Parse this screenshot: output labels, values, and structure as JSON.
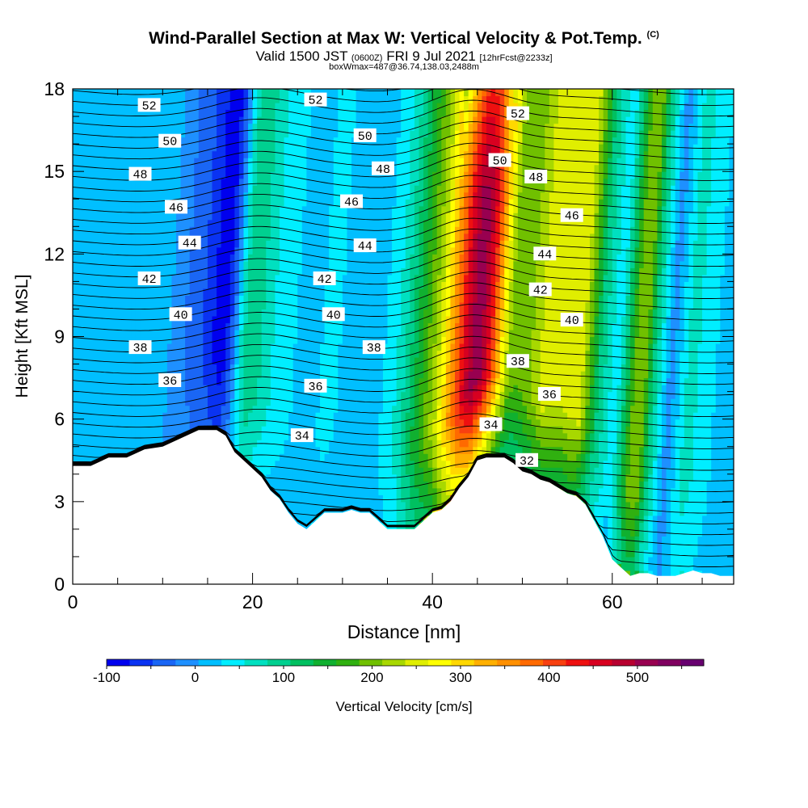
{
  "header": {
    "title": "Wind-Parallel Section at Max W: Vertical Velocity & Pot.Temp.",
    "title_mark": "(C)",
    "valid_time": "Valid 1500 JST",
    "utc_time": "(0600Z)",
    "date": "FRI 9 Jul 2021",
    "forecast": "[12hrFcst@2233z]",
    "note": "boxWmax=487@36.74,138.03,2488m"
  },
  "chart_data": {
    "type": "heatmap",
    "xlabel": "Distance [nm]",
    "ylabel": "Height [Kft MSL]",
    "xlim": [
      0,
      73.5
    ],
    "ylim": [
      0,
      18
    ],
    "x_ticks": [
      0,
      20,
      40,
      60
    ],
    "y_ticks": [
      0,
      3,
      6,
      9,
      12,
      15,
      18
    ],
    "colorbar": {
      "label": "Vertical Velocity [cm/s]",
      "min": -100,
      "max": 550,
      "step": 25,
      "ticks": [
        -100,
        0,
        100,
        200,
        300,
        400,
        500
      ],
      "colors": [
        "#0000ee",
        "#0a33f2",
        "#1a66f5",
        "#1e90ff",
        "#00bfff",
        "#00eeff",
        "#00e0c0",
        "#00d090",
        "#00c060",
        "#10b030",
        "#30b010",
        "#70c000",
        "#a8d800",
        "#e0ee00",
        "#ffff00",
        "#ffd800",
        "#ffb000",
        "#ff9000",
        "#ff6a00",
        "#f84010",
        "#ee1010",
        "#d80020",
        "#b80030",
        "#980050",
        "#800060",
        "#680070"
      ]
    },
    "w_profile": {
      "x": [
        0,
        4,
        8,
        10,
        12,
        14,
        15,
        16,
        17,
        18,
        19,
        20,
        22,
        24,
        26,
        28,
        30,
        32,
        34,
        36,
        38,
        40,
        41,
        42,
        43,
        44,
        45,
        46,
        47,
        48,
        49,
        50,
        52,
        54,
        56,
        58,
        60,
        62,
        63,
        64,
        66,
        68,
        70,
        72,
        73.5
      ],
      "w": [
        15,
        10,
        5,
        0,
        -30,
        -55,
        -80,
        -95,
        -40,
        60,
        100,
        80,
        40,
        25,
        20,
        30,
        20,
        10,
        25,
        60,
        140,
        220,
        290,
        360,
        440,
        490,
        470,
        380,
        270,
        190,
        175,
        190,
        240,
        225,
        240,
        100,
        25,
        180,
        200,
        100,
        -15,
        60,
        40,
        10,
        0
      ]
    },
    "theta_contours": [
      32,
      34,
      36,
      38,
      40,
      42,
      44,
      46,
      48,
      50,
      52
    ],
    "contour_labels": [
      {
        "text": "52",
        "x": 8.5,
        "y": 17.4
      },
      {
        "text": "50",
        "x": 10.8,
        "y": 16.1
      },
      {
        "text": "48",
        "x": 7.5,
        "y": 14.9
      },
      {
        "text": "46",
        "x": 11.5,
        "y": 13.7
      },
      {
        "text": "44",
        "x": 13,
        "y": 12.4
      },
      {
        "text": "42",
        "x": 8.5,
        "y": 11.1
      },
      {
        "text": "40",
        "x": 12,
        "y": 9.8
      },
      {
        "text": "38",
        "x": 7.5,
        "y": 8.6
      },
      {
        "text": "36",
        "x": 10.8,
        "y": 7.4
      },
      {
        "text": "52",
        "x": 27,
        "y": 17.6
      },
      {
        "text": "50",
        "x": 32.5,
        "y": 16.3
      },
      {
        "text": "48",
        "x": 34.5,
        "y": 15.1
      },
      {
        "text": "46",
        "x": 31,
        "y": 13.9
      },
      {
        "text": "44",
        "x": 32.5,
        "y": 12.3
      },
      {
        "text": "42",
        "x": 28,
        "y": 11.1
      },
      {
        "text": "40",
        "x": 29,
        "y": 9.8
      },
      {
        "text": "38",
        "x": 33.5,
        "y": 8.6
      },
      {
        "text": "36",
        "x": 27,
        "y": 7.2
      },
      {
        "text": "34",
        "x": 25.5,
        "y": 5.4
      },
      {
        "text": "52",
        "x": 49.5,
        "y": 17.1
      },
      {
        "text": "50",
        "x": 47.5,
        "y": 15.4
      },
      {
        "text": "48",
        "x": 51.5,
        "y": 14.8
      },
      {
        "text": "46",
        "x": 55.5,
        "y": 13.4
      },
      {
        "text": "44",
        "x": 52.5,
        "y": 12.0
      },
      {
        "text": "42",
        "x": 52,
        "y": 10.7
      },
      {
        "text": "40",
        "x": 55.5,
        "y": 9.6
      },
      {
        "text": "38",
        "x": 49.5,
        "y": 8.1
      },
      {
        "text": "36",
        "x": 53,
        "y": 6.9
      },
      {
        "text": "34",
        "x": 46.5,
        "y": 5.8
      },
      {
        "text": "32",
        "x": 50.5,
        "y": 4.5
      }
    ],
    "terrain": {
      "x": [
        0,
        2,
        4,
        6,
        8,
        10,
        12,
        14,
        16,
        17,
        18,
        19,
        20,
        21,
        22,
        23,
        24,
        25,
        26,
        27,
        28,
        29,
        30,
        31,
        32,
        33,
        34,
        35,
        36,
        37,
        38,
        39,
        40,
        41,
        42,
        43,
        44,
        45,
        46,
        47,
        48,
        49,
        50,
        51,
        52,
        53,
        54,
        55,
        56,
        57,
        58,
        59,
        60,
        61,
        62,
        63,
        64,
        65,
        66,
        67,
        68,
        69,
        70,
        71,
        72,
        73.5
      ],
      "h": [
        4.3,
        4.3,
        4.6,
        4.6,
        4.9,
        5.0,
        5.3,
        5.6,
        5.6,
        5.4,
        4.8,
        4.5,
        4.2,
        3.9,
        3.4,
        3.1,
        2.6,
        2.2,
        2.0,
        2.3,
        2.6,
        2.6,
        2.6,
        2.7,
        2.6,
        2.6,
        2.3,
        2.0,
        2.0,
        2.0,
        2.0,
        2.3,
        2.6,
        2.7,
        3.0,
        3.5,
        3.9,
        4.5,
        4.6,
        4.6,
        4.6,
        4.4,
        4.1,
        4.0,
        3.8,
        3.7,
        3.5,
        3.3,
        3.2,
        2.9,
        2.3,
        1.7,
        0.9,
        0.6,
        0.3,
        0.4,
        0.4,
        0.3,
        0.3,
        0.3,
        0.4,
        0.5,
        0.4,
        0.4,
        0.3,
        0.3
      ]
    }
  }
}
